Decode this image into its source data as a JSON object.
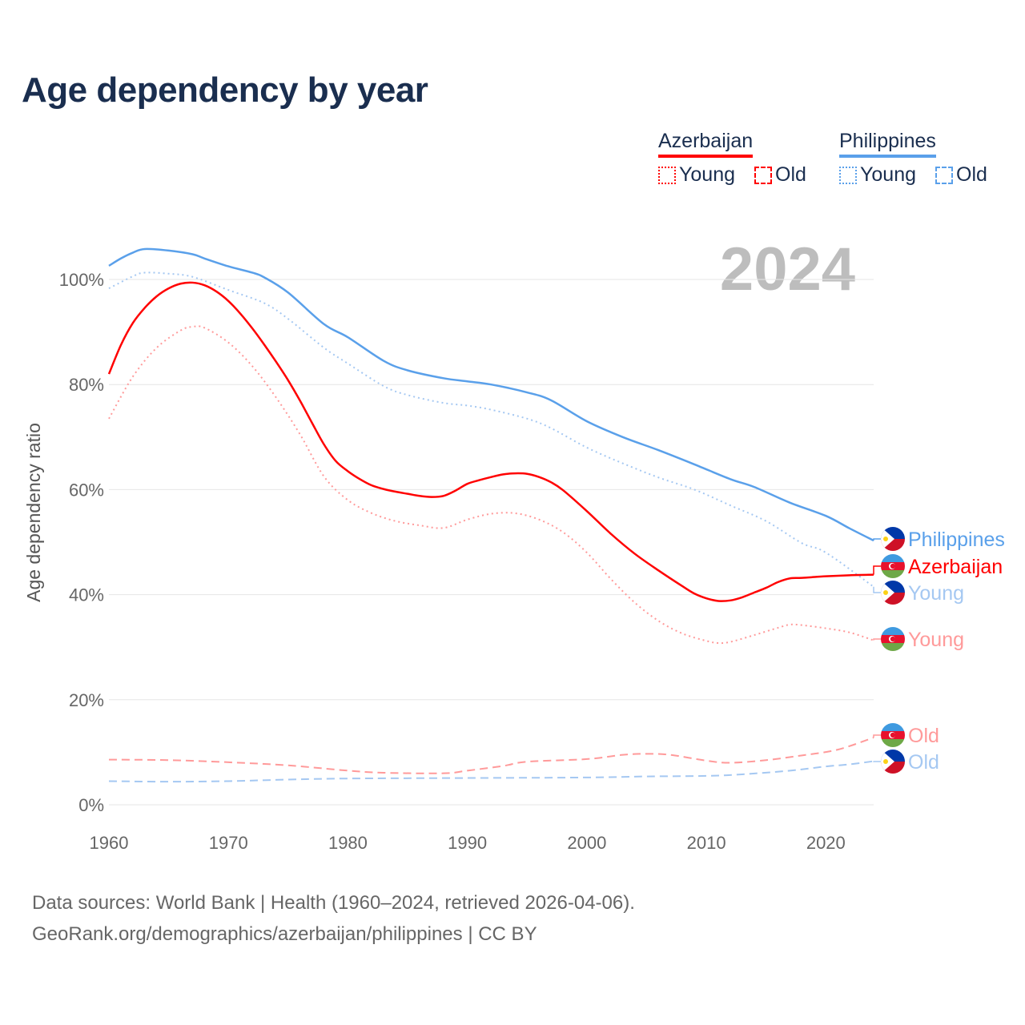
{
  "title": "Age dependency by year",
  "legend": {
    "groups": [
      {
        "name": "Azerbaijan",
        "color": "#ff0000",
        "items": [
          "Young",
          "Old"
        ]
      },
      {
        "name": "Philippines",
        "color": "#5aa0ea",
        "items": [
          "Young",
          "Old"
        ]
      }
    ]
  },
  "year_label": "2024",
  "source_line1": "Data sources: World Bank | Health (1960–2024, retrieved 2026-04-06).",
  "source_line2": "GeoRank.org/demographics/azerbaijan/philippines | CC BY",
  "chart_data": {
    "type": "line",
    "title": "Age dependency by year",
    "xlabel": "",
    "ylabel": "Age dependency ratio",
    "xlim": [
      1960,
      2024
    ],
    "ylim": [
      0,
      110
    ],
    "xticks": [
      1960,
      1970,
      1980,
      1990,
      2000,
      2010,
      2020
    ],
    "xtick_labels": [
      "1960",
      "1970",
      "1980",
      "1990",
      "2000",
      "2010",
      "2020"
    ],
    "yticks": [
      0,
      20,
      40,
      60,
      80,
      100
    ],
    "ytick_labels": [
      "0%",
      "20%",
      "40%",
      "60%",
      "80%",
      "100%"
    ],
    "grid": true,
    "series": [
      {
        "name": "Philippines",
        "label": "Philippines",
        "country": "Philippines",
        "style": "solid",
        "color": "#5aa0ea",
        "points": [
          [
            1960,
            102.6
          ],
          [
            1961,
            104
          ],
          [
            1962,
            105.1
          ],
          [
            1963,
            105.8
          ],
          [
            1965,
            105.5
          ],
          [
            1967,
            104.8
          ],
          [
            1968,
            104
          ],
          [
            1970,
            102.5
          ],
          [
            1972,
            101.3
          ],
          [
            1973,
            100.4
          ],
          [
            1975,
            97.5
          ],
          [
            1978,
            91.5
          ],
          [
            1980,
            89
          ],
          [
            1983,
            84.5
          ],
          [
            1985,
            82.7
          ],
          [
            1988,
            81.2
          ],
          [
            1990,
            80.6
          ],
          [
            1992,
            80
          ],
          [
            1995,
            78.5
          ],
          [
            1997,
            77
          ],
          [
            2000,
            73
          ],
          [
            2003,
            70
          ],
          [
            2006,
            67.5
          ],
          [
            2009,
            64.8
          ],
          [
            2012,
            62
          ],
          [
            2014,
            60.5
          ],
          [
            2017,
            57.5
          ],
          [
            2020,
            55
          ],
          [
            2022,
            52.6
          ],
          [
            2024,
            50.3
          ]
        ]
      },
      {
        "name": "Philippines Young",
        "label": "Young",
        "country": "Philippines",
        "style": "dotted",
        "color": "#a5c8f2",
        "points": [
          [
            1960,
            98.3
          ],
          [
            1962,
            100.6
          ],
          [
            1963,
            101.3
          ],
          [
            1965,
            101.1
          ],
          [
            1967,
            100.5
          ],
          [
            1970,
            98
          ],
          [
            1973,
            95.5
          ],
          [
            1975,
            92.5
          ],
          [
            1978,
            87
          ],
          [
            1980,
            84
          ],
          [
            1983,
            79.7
          ],
          [
            1985,
            78
          ],
          [
            1988,
            76.5
          ],
          [
            1990,
            76
          ],
          [
            1992,
            75.2
          ],
          [
            1995,
            73.5
          ],
          [
            1997,
            71.7
          ],
          [
            2000,
            68
          ],
          [
            2003,
            65
          ],
          [
            2006,
            62.3
          ],
          [
            2009,
            60
          ],
          [
            2012,
            57
          ],
          [
            2015,
            54
          ],
          [
            2018,
            49.8
          ],
          [
            2020,
            48
          ],
          [
            2024,
            41.5
          ]
        ]
      },
      {
        "name": "Philippines Old",
        "label": "Old",
        "country": "Philippines",
        "style": "dashed",
        "color": "#a5c8f2",
        "points": [
          [
            1960,
            4.5
          ],
          [
            1965,
            4.4
          ],
          [
            1970,
            4.5
          ],
          [
            1975,
            4.8
          ],
          [
            1980,
            5
          ],
          [
            1990,
            5.1
          ],
          [
            2000,
            5.2
          ],
          [
            2005,
            5.4
          ],
          [
            2010,
            5.5
          ],
          [
            2013,
            5.8
          ],
          [
            2017,
            6.5
          ],
          [
            2020,
            7.3
          ],
          [
            2022,
            7.7
          ],
          [
            2024,
            8.3
          ]
        ]
      },
      {
        "name": "Azerbaijan",
        "label": "Azerbaijan",
        "country": "Azerbaijan",
        "style": "solid",
        "color": "#ff0000",
        "points": [
          [
            1960,
            82
          ],
          [
            1961,
            87.5
          ],
          [
            1962,
            91.7
          ],
          [
            1963,
            94.6
          ],
          [
            1964,
            96.8
          ],
          [
            1965,
            98.3
          ],
          [
            1966,
            99.2
          ],
          [
            1967,
            99.4
          ],
          [
            1968,
            98.9
          ],
          [
            1969,
            97.7
          ],
          [
            1970,
            95.9
          ],
          [
            1971,
            93.5
          ],
          [
            1972,
            90.7
          ],
          [
            1973,
            87.6
          ],
          [
            1974,
            84.3
          ],
          [
            1975,
            80.8
          ],
          [
            1976,
            76.9
          ],
          [
            1977,
            72.7
          ],
          [
            1978,
            68.6
          ],
          [
            1979,
            65.4
          ],
          [
            1980,
            63.5
          ],
          [
            1981,
            62
          ],
          [
            1982,
            60.8
          ],
          [
            1983,
            60.1
          ],
          [
            1984,
            59.6
          ],
          [
            1985,
            59.2
          ],
          [
            1986,
            58.8
          ],
          [
            1987,
            58.6
          ],
          [
            1988,
            58.8
          ],
          [
            1989,
            59.8
          ],
          [
            1990,
            61.1
          ],
          [
            1991,
            61.8
          ],
          [
            1992,
            62.4
          ],
          [
            1993,
            62.9
          ],
          [
            1994,
            63.1
          ],
          [
            1995,
            63
          ],
          [
            1996,
            62.4
          ],
          [
            1997,
            61.4
          ],
          [
            1998,
            59.9
          ],
          [
            2000,
            55.9
          ],
          [
            2002,
            51.6
          ],
          [
            2004,
            47.8
          ],
          [
            2006,
            44.6
          ],
          [
            2008,
            41.6
          ],
          [
            2009,
            40.2
          ],
          [
            2010,
            39.3
          ],
          [
            2011,
            38.8
          ],
          [
            2012,
            38.9
          ],
          [
            2013,
            39.5
          ],
          [
            2014,
            40.4
          ],
          [
            2015,
            41.3
          ],
          [
            2016,
            42.4
          ],
          [
            2017,
            43.1
          ],
          [
            2018,
            43.2
          ],
          [
            2020,
            43.5
          ],
          [
            2022,
            43.7
          ],
          [
            2024,
            43.8
          ]
        ]
      },
      {
        "name": "Azerbaijan Young",
        "label": "Young",
        "country": "Azerbaijan",
        "style": "dotted",
        "color": "#ff9a9a",
        "points": [
          [
            1960,
            73.5
          ],
          [
            1962,
            81.5
          ],
          [
            1964,
            87
          ],
          [
            1966,
            90.3
          ],
          [
            1967,
            91
          ],
          [
            1968,
            90.8
          ],
          [
            1970,
            88
          ],
          [
            1972,
            83.5
          ],
          [
            1974,
            77.5
          ],
          [
            1976,
            70.5
          ],
          [
            1978,
            62.5
          ],
          [
            1980,
            58
          ],
          [
            1982,
            55.5
          ],
          [
            1984,
            54
          ],
          [
            1986,
            53.2
          ],
          [
            1988,
            52.7
          ],
          [
            1990,
            54.3
          ],
          [
            1992,
            55.4
          ],
          [
            1994,
            55.5
          ],
          [
            1996,
            54.3
          ],
          [
            1998,
            51.9
          ],
          [
            2000,
            48
          ],
          [
            2002,
            43
          ],
          [
            2004,
            38.5
          ],
          [
            2006,
            35
          ],
          [
            2008,
            32.6
          ],
          [
            2010,
            31.2
          ],
          [
            2011,
            30.8
          ],
          [
            2012,
            31
          ],
          [
            2014,
            32.3
          ],
          [
            2016,
            33.7
          ],
          [
            2017,
            34.3
          ],
          [
            2018,
            34.2
          ],
          [
            2020,
            33.6
          ],
          [
            2022,
            32.8
          ],
          [
            2024,
            31.3
          ]
        ]
      },
      {
        "name": "Azerbaijan Old",
        "label": "Old",
        "country": "Azerbaijan",
        "style": "dashed",
        "color": "#ff9a9a",
        "points": [
          [
            1960,
            8.6
          ],
          [
            1965,
            8.5
          ],
          [
            1970,
            8.1
          ],
          [
            1975,
            7.5
          ],
          [
            1980,
            6.5
          ],
          [
            1983,
            6.1
          ],
          [
            1988,
            6
          ],
          [
            1990,
            6.5
          ],
          [
            1993,
            7.4
          ],
          [
            1995,
            8.2
          ],
          [
            2000,
            8.7
          ],
          [
            2003,
            9.5
          ],
          [
            2005,
            9.7
          ],
          [
            2007,
            9.5
          ],
          [
            2010,
            8.4
          ],
          [
            2012,
            8
          ],
          [
            2015,
            8.5
          ],
          [
            2018,
            9.4
          ],
          [
            2021,
            10.5
          ],
          [
            2024,
            12.8
          ]
        ]
      }
    ]
  }
}
